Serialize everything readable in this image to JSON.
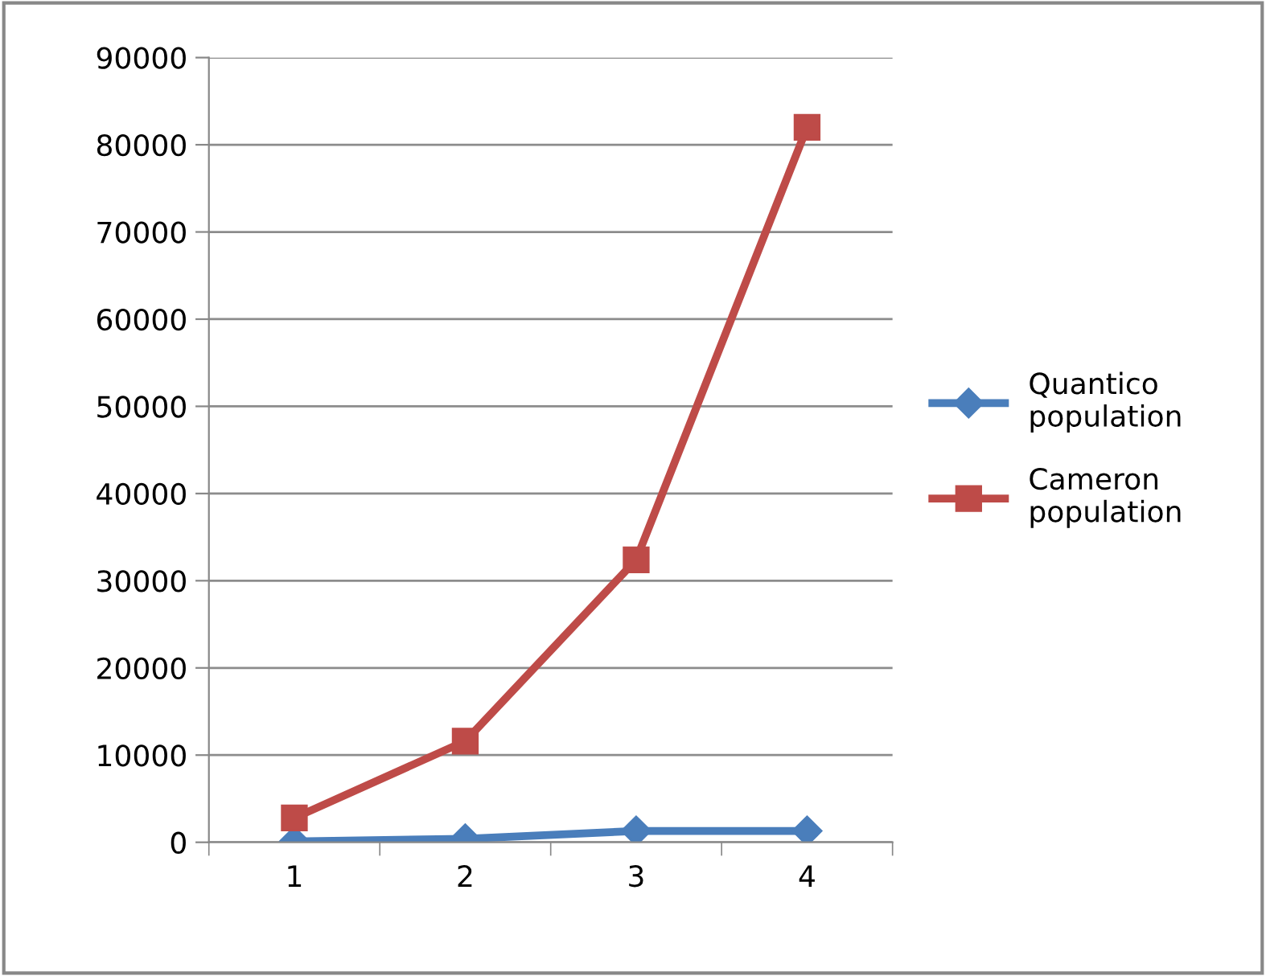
{
  "chart_data": {
    "type": "line",
    "categories": [
      "1",
      "2",
      "3",
      "4"
    ],
    "series": [
      {
        "name": "Quantico population",
        "color": "#4a7ebb",
        "values": [
          100,
          400,
          1300,
          1300
        ],
        "marker": "diamond"
      },
      {
        "name": "Cameron population",
        "color": "#be4b48",
        "values": [
          2800,
          11600,
          32400,
          82000
        ],
        "marker": "square"
      }
    ],
    "ylim": [
      0,
      90000
    ],
    "yticks": [
      0,
      10000,
      20000,
      30000,
      40000,
      50000,
      60000,
      70000,
      80000,
      90000
    ],
    "grid": "y",
    "legend": "right"
  }
}
